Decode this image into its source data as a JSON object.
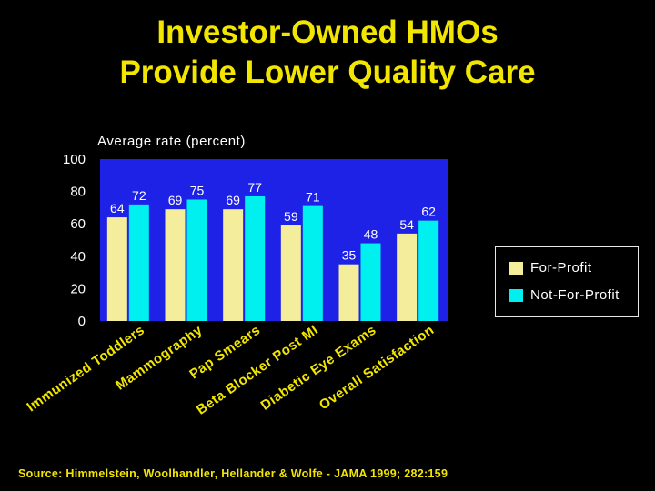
{
  "title_line1": "Investor-Owned HMOs",
  "title_line2": "Provide Lower Quality Care",
  "source": "Source: Himmelstein, Woolhandler, Hellander & Wolfe - JAMA 1999; 282:159",
  "colors": {
    "background": "#000000",
    "title": "#f2e600",
    "plot_background": "#1e22e6",
    "for_profit": "#f4ee9c",
    "not_for_profit": "#00f0f0"
  },
  "chart_data": {
    "type": "bar",
    "ylabel": "Average rate (percent)",
    "xlabel": "",
    "ylim": [
      0,
      100
    ],
    "yticks": [
      0,
      20,
      40,
      60,
      80,
      100
    ],
    "categories": [
      "Immunized Toddlers",
      "Mammography",
      "Pap Smears",
      "Beta Blocker Post MI",
      "Diabetic Eye Exams",
      "Overall Satisfaction"
    ],
    "series": [
      {
        "name": "For-Profit",
        "values": [
          64,
          69,
          69,
          59,
          35,
          54
        ]
      },
      {
        "name": "Not-For-Profit",
        "values": [
          72,
          75,
          77,
          71,
          48,
          62
        ]
      }
    ],
    "legend_position": "right",
    "grid": false
  }
}
